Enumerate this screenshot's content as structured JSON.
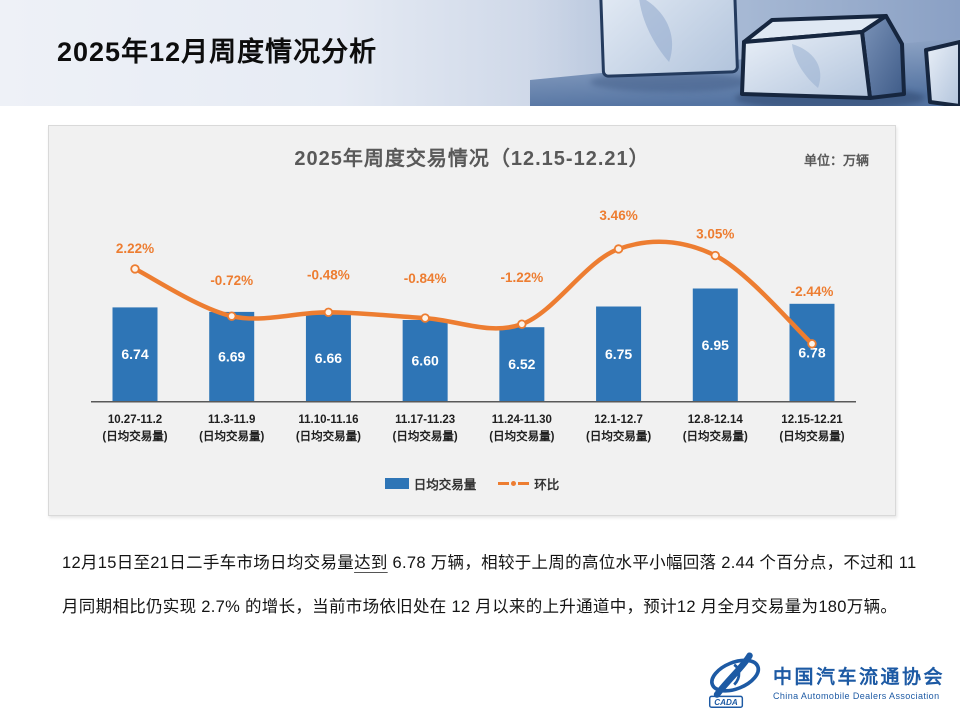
{
  "page_title": "2025年12月周度情况分析",
  "chart": {
    "title": "2025年周度交易情况（12.15-12.21）",
    "unit_label": "单位：万辆",
    "legend": {
      "bar_label": "日均交易量",
      "line_label": "环比"
    }
  },
  "chart_data": {
    "type": "combo-bar-line",
    "title": "2025年周度交易情况（12.15-12.21）",
    "unit": "万辆",
    "categories": [
      "10.27-11.2",
      "11.3-11.9",
      "11.10-11.16",
      "11.17-11.23",
      "11.24-11.30",
      "12.1-12.7",
      "12.8-12.14",
      "12.15-12.21"
    ],
    "category_sublabel": "(日均交易量)",
    "series": [
      {
        "name": "日均交易量",
        "type": "bar",
        "values": [
          6.74,
          6.69,
          6.66,
          6.6,
          6.52,
          6.75,
          6.95,
          6.78
        ],
        "labels": [
          "6.74",
          "6.69",
          "6.66",
          "6.60",
          "6.52",
          "6.75",
          "6.95",
          "6.78"
        ],
        "color": "#2E75B6"
      },
      {
        "name": "环比",
        "type": "line",
        "values": [
          2.22,
          -0.72,
          -0.48,
          -0.84,
          -1.22,
          3.46,
          3.05,
          -2.44
        ],
        "labels": [
          "2.22%",
          "-0.72%",
          "-0.48%",
          "-0.84%",
          "-1.22%",
          "3.46%",
          "3.05%",
          "-2.44%"
        ],
        "color": "#ED7D31"
      }
    ],
    "ylim_bar": [
      5.7,
      8.2
    ],
    "ylim_line": [
      -6,
      8
    ],
    "label_dy": [
      -16,
      -31,
      -33,
      -35,
      -42,
      -29,
      -17,
      -48
    ],
    "grid": false,
    "legend_position": "bottom",
    "axis_color": "#595959",
    "xlabel_color": "#1f1f1f"
  },
  "body": {
    "line1_pre": "12月15日至21日二手车市场日均交易量",
    "line1_underline": "达到",
    "line1_post": " 6.78 万辆，相较于上周的高位水平小幅回落 2.44 个百分点，不过和 11",
    "line2": "月同期相比仍实现 2.7% 的增长，当前市场依旧处在 12 月以来的上升通道中，预计12 月全月交易量为180万辆。"
  },
  "footer": {
    "logo_badge": "CADA",
    "org_cn": "中国汽车流通协会",
    "org_en": "China Automobile Dealers Association"
  }
}
